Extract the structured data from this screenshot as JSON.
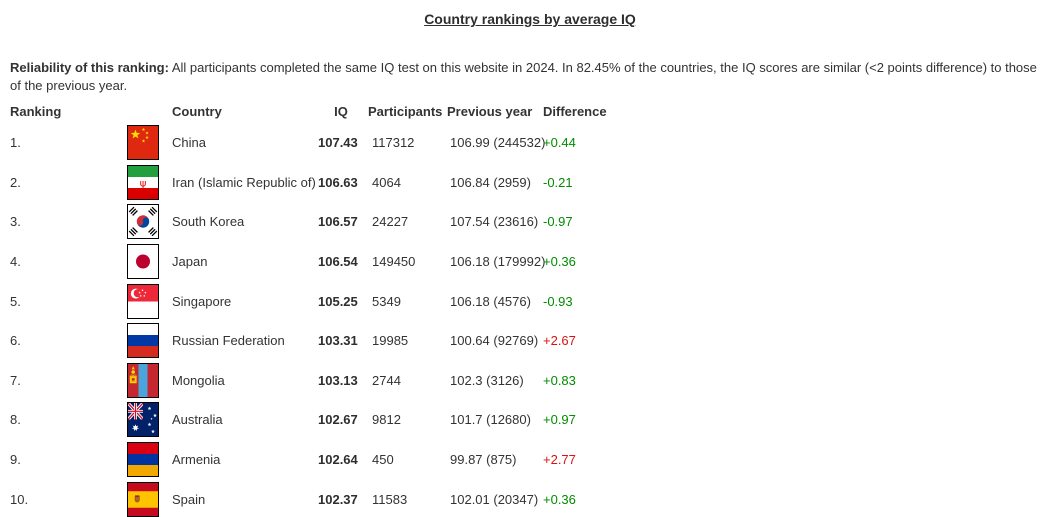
{
  "page": {
    "title": "Country rankings by average IQ"
  },
  "intro": {
    "bold": "Reliability of this ranking:",
    "text": " All participants completed the same IQ test on this website in 2024. In 82.45% of the countries, the IQ scores are similar (<2 points difference) to those of the previous year."
  },
  "colors": {
    "diff_green": "#008c00",
    "diff_red": "#dd1111",
    "text": "#333333"
  },
  "table": {
    "headers": {
      "ranking": "Ranking",
      "country": "Country",
      "iq": "IQ",
      "participants": "Participants",
      "previous_year": "Previous year",
      "difference": "Difference"
    },
    "rows": [
      {
        "rank": "1.",
        "flag": "cn",
        "country": "China",
        "iq": "107.43",
        "participants": "117312",
        "previous_year": "106.99 (244532)",
        "difference": "+0.44",
        "diff_color": "#008c00"
      },
      {
        "rank": "2.",
        "flag": "ir",
        "country": "Iran (Islamic Republic of)",
        "iq": "106.63",
        "participants": "4064",
        "previous_year": "106.84 (2959)",
        "difference": "-0.21",
        "diff_color": "#008c00"
      },
      {
        "rank": "3.",
        "flag": "kr",
        "country": "South Korea",
        "iq": "106.57",
        "participants": "24227",
        "previous_year": "107.54 (23616)",
        "difference": "-0.97",
        "diff_color": "#008c00"
      },
      {
        "rank": "4.",
        "flag": "jp",
        "country": "Japan",
        "iq": "106.54",
        "participants": "149450",
        "previous_year": "106.18 (179992)",
        "difference": "+0.36",
        "diff_color": "#008c00"
      },
      {
        "rank": "5.",
        "flag": "sg",
        "country": "Singapore",
        "iq": "105.25",
        "participants": "5349",
        "previous_year": "106.18 (4576)",
        "difference": "-0.93",
        "diff_color": "#008c00"
      },
      {
        "rank": "6.",
        "flag": "ru",
        "country": "Russian Federation",
        "iq": "103.31",
        "participants": "19985",
        "previous_year": "100.64 (92769)",
        "difference": "+2.67",
        "diff_color": "#dd1111"
      },
      {
        "rank": "7.",
        "flag": "mn",
        "country": "Mongolia",
        "iq": "103.13",
        "participants": "2744",
        "previous_year": "102.3 (3126)",
        "difference": "+0.83",
        "diff_color": "#008c00"
      },
      {
        "rank": "8.",
        "flag": "au",
        "country": "Australia",
        "iq": "102.67",
        "participants": "9812",
        "previous_year": "101.7 (12680)",
        "difference": "+0.97",
        "diff_color": "#008c00"
      },
      {
        "rank": "9.",
        "flag": "am",
        "country": "Armenia",
        "iq": "102.64",
        "participants": "450",
        "previous_year": "99.87 (875)",
        "difference": "+2.77",
        "diff_color": "#dd1111"
      },
      {
        "rank": "10.",
        "flag": "es",
        "country": "Spain",
        "iq": "102.37",
        "participants": "11583",
        "previous_year": "102.01 (20347)",
        "difference": "+0.36",
        "diff_color": "#008c00"
      }
    ]
  }
}
